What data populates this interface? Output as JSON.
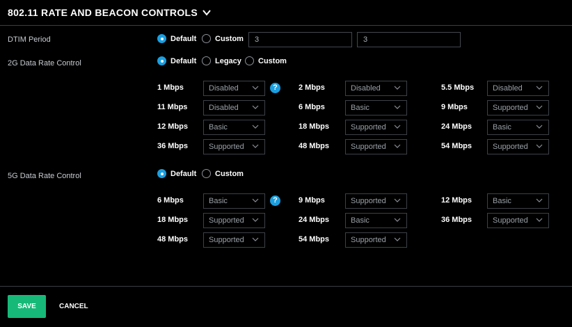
{
  "section": {
    "title": "802.11 RATE AND BEACON CONTROLS"
  },
  "dtim": {
    "label": "DTIM Period",
    "opt_default": "Default",
    "opt_custom": "Custom",
    "value1": "3",
    "value2": "3"
  },
  "g2": {
    "label": "2G Data Rate Control",
    "opt_default": "Default",
    "opt_legacy": "Legacy",
    "opt_custom": "Custom",
    "rates": [
      {
        "label": "1 Mbps",
        "value": "Disabled"
      },
      {
        "label": "2 Mbps",
        "value": "Disabled"
      },
      {
        "label": "5.5 Mbps",
        "value": "Disabled"
      },
      {
        "label": "11 Mbps",
        "value": "Disabled"
      },
      {
        "label": "6 Mbps",
        "value": "Basic"
      },
      {
        "label": "9 Mbps",
        "value": "Supported"
      },
      {
        "label": "12 Mbps",
        "value": "Basic"
      },
      {
        "label": "18 Mbps",
        "value": "Supported"
      },
      {
        "label": "24 Mbps",
        "value": "Basic"
      },
      {
        "label": "36 Mbps",
        "value": "Supported"
      },
      {
        "label": "48 Mbps",
        "value": "Supported"
      },
      {
        "label": "54 Mbps",
        "value": "Supported"
      }
    ]
  },
  "g5": {
    "label": "5G Data Rate Control",
    "opt_default": "Default",
    "opt_custom": "Custom",
    "rates": [
      {
        "label": "6 Mbps",
        "value": "Basic"
      },
      {
        "label": "9 Mbps",
        "value": "Supported"
      },
      {
        "label": "12 Mbps",
        "value": "Basic"
      },
      {
        "label": "18 Mbps",
        "value": "Supported"
      },
      {
        "label": "24 Mbps",
        "value": "Basic"
      },
      {
        "label": "36 Mbps",
        "value": "Supported"
      },
      {
        "label": "48 Mbps",
        "value": "Supported"
      },
      {
        "label": "54 Mbps",
        "value": "Supported"
      }
    ]
  },
  "help_glyph": "?",
  "icons": {
    "section_toggle": "chevron-down-icon",
    "select": "chevron-down-icon",
    "help": "question-circle-icon"
  },
  "colors": {
    "accent": "#1a9fe0",
    "save": "#17b978"
  },
  "footer": {
    "save_label": "SAVE",
    "cancel_label": "CANCEL"
  }
}
